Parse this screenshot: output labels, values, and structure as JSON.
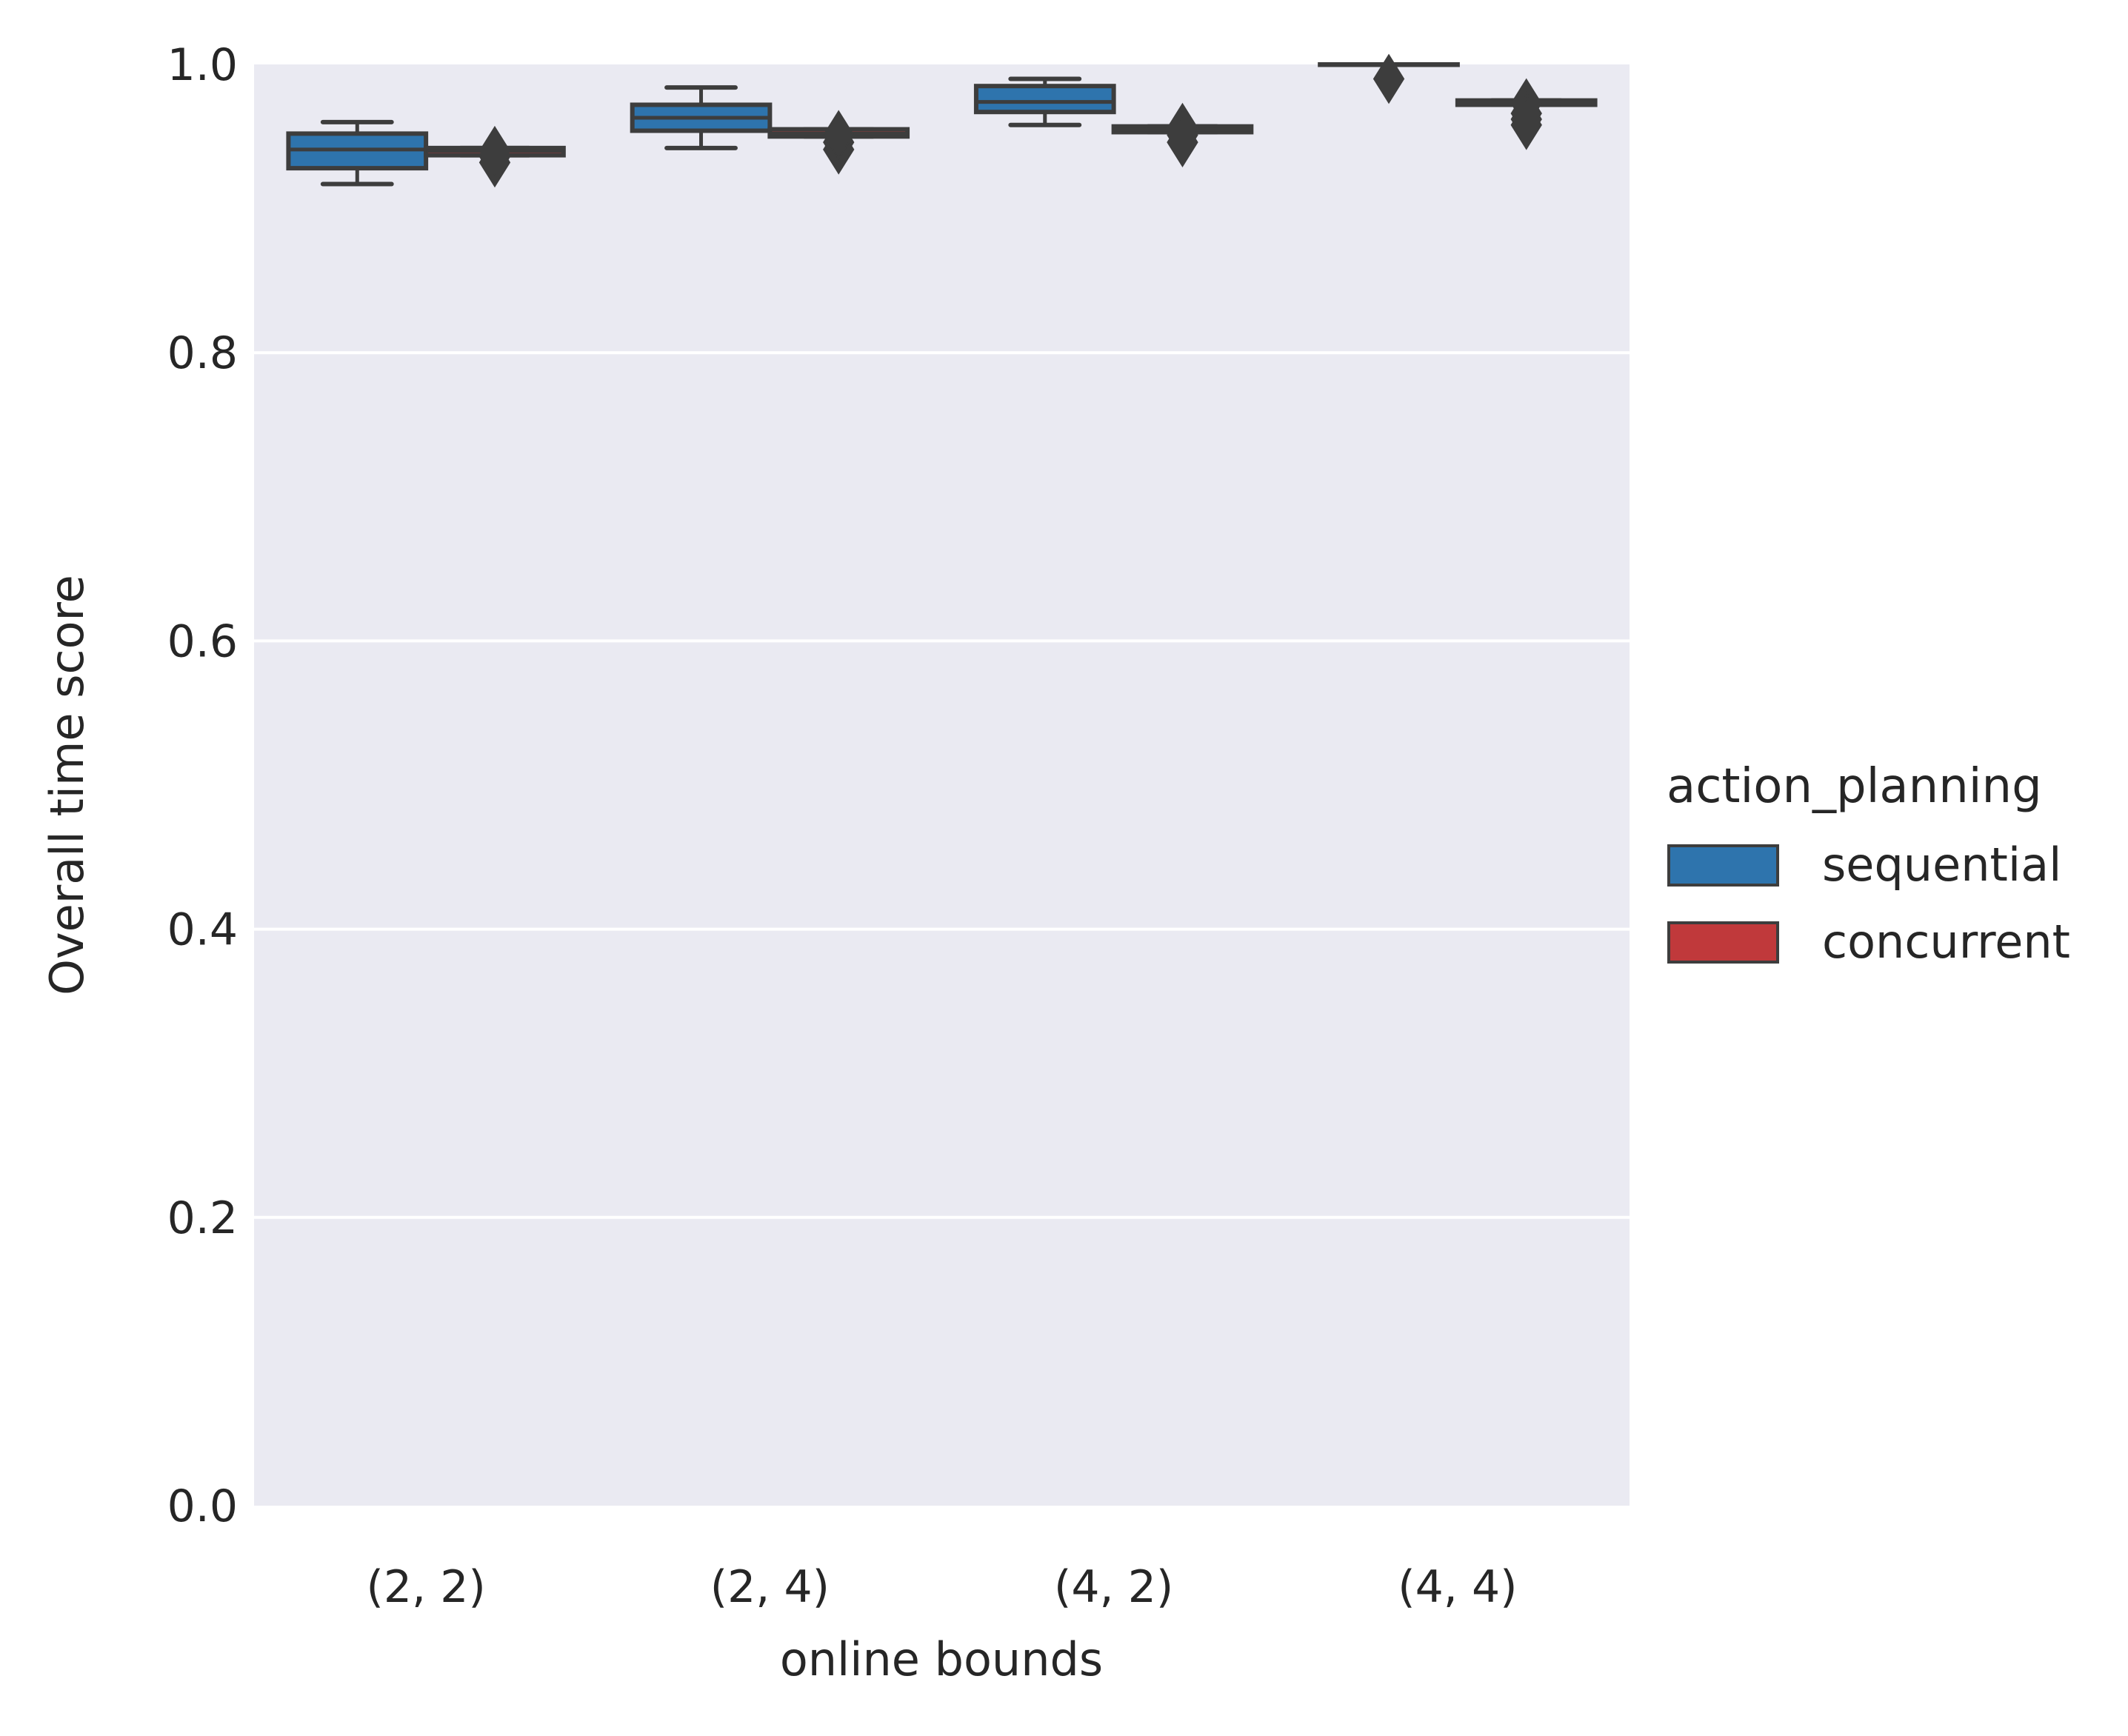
{
  "chart_data": {
    "type": "box",
    "title": "",
    "xlabel": "online bounds",
    "ylabel": "Overall time score",
    "categories": [
      "(2, 2)",
      "(2, 4)",
      "(4, 2)",
      "(4, 4)"
    ],
    "ylim": [
      0.0,
      1.0
    ],
    "yticks": [
      "0.0",
      "0.2",
      "0.4",
      "0.6",
      "0.8",
      "1.0"
    ],
    "grid": true,
    "legend": {
      "title": "action_planning",
      "placement": "right"
    },
    "series": [
      {
        "name": "sequential",
        "color": "#2e74ad",
        "boxes": [
          {
            "q1": 0.928,
            "median": 0.941,
            "q3": 0.952,
            "whisker_low": 0.917,
            "whisker_high": 0.96,
            "outliers": []
          },
          {
            "q1": 0.954,
            "median": 0.963,
            "q3": 0.972,
            "whisker_low": 0.942,
            "whisker_high": 0.984,
            "outliers": []
          },
          {
            "q1": 0.967,
            "median": 0.974,
            "q3": 0.985,
            "whisker_low": 0.958,
            "whisker_high": 0.99,
            "outliers": []
          },
          {
            "q1": 1.0,
            "median": 1.0,
            "q3": 1.0,
            "whisker_low": 1.0,
            "whisker_high": 1.0,
            "outliers": [
              0.99
            ]
          }
        ]
      },
      {
        "name": "concurrent",
        "color": "#c0393b",
        "boxes": [
          {
            "q1": 0.937,
            "median": 0.94,
            "q3": 0.942,
            "whisker_low": 0.937,
            "whisker_high": 0.942,
            "outliers": [
              0.936,
              0.932,
              0.94
            ]
          },
          {
            "q1": 0.95,
            "median": 0.952,
            "q3": 0.955,
            "whisker_low": 0.95,
            "whisker_high": 0.955,
            "outliers": [
              0.946,
              0.941,
              0.951
            ]
          },
          {
            "q1": 0.953,
            "median": 0.955,
            "q3": 0.957,
            "whisker_low": 0.953,
            "whisker_high": 0.957,
            "outliers": [
              0.956,
              0.951,
              0.946
            ]
          },
          {
            "q1": 0.972,
            "median": 0.974,
            "q3": 0.975,
            "whisker_low": 0.972,
            "whisker_high": 0.975,
            "outliers": [
              0.973,
              0.966,
              0.962,
              0.958
            ]
          }
        ]
      }
    ]
  }
}
